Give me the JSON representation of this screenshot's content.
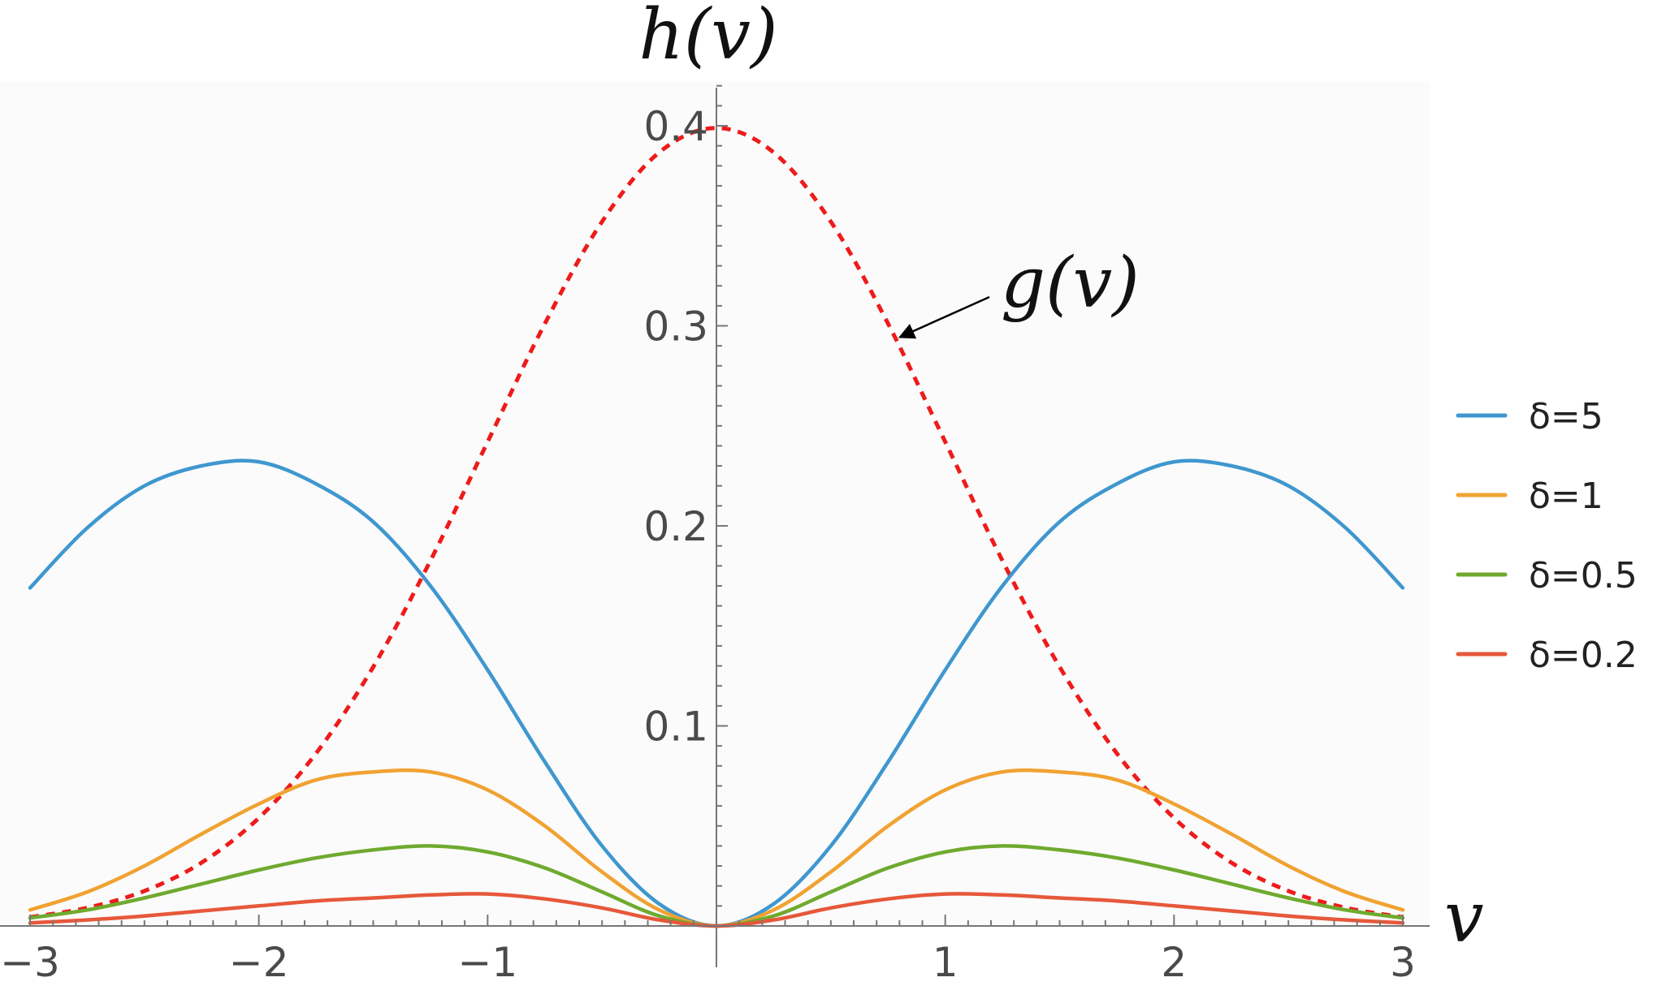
{
  "chart_data": {
    "type": "line",
    "xlabel": "v",
    "ylabel": "h(v)",
    "xlim": [
      -3,
      3
    ],
    "ylim": [
      0,
      0.42
    ],
    "x_ticks": [
      {
        "value": -3,
        "label": "−3"
      },
      {
        "value": -2,
        "label": "−2"
      },
      {
        "value": -1,
        "label": "−1"
      },
      {
        "value": 1,
        "label": "1"
      },
      {
        "value": 2,
        "label": "2"
      },
      {
        "value": 3,
        "label": "3"
      }
    ],
    "y_ticks": [
      {
        "value": 0.1,
        "label": "0.1"
      },
      {
        "value": 0.2,
        "label": "0.2"
      },
      {
        "value": 0.3,
        "label": "0.3"
      },
      {
        "value": 0.4,
        "label": "0.4"
      }
    ],
    "x": [
      -3.0,
      -2.75,
      -2.5,
      -2.25,
      -2.0,
      -1.75,
      -1.5,
      -1.25,
      -1.0,
      -0.75,
      -0.5,
      -0.25,
      0.0,
      0.25,
      0.5,
      0.75,
      1.0,
      1.25,
      1.5,
      1.75,
      2.0,
      2.25,
      2.5,
      2.75,
      3.0
    ],
    "series": [
      {
        "name": "δ=5",
        "color": "#3f97cf",
        "dashed": false,
        "values": [
          0.169,
          0.199,
          0.22,
          0.23,
          0.232,
          0.221,
          0.202,
          0.17,
          0.128,
          0.082,
          0.04,
          0.011,
          0.0,
          0.011,
          0.04,
          0.082,
          0.128,
          0.17,
          0.202,
          0.221,
          0.232,
          0.23,
          0.22,
          0.199,
          0.169
        ]
      },
      {
        "name": "δ=1",
        "color": "#f0a232",
        "dashed": false,
        "values": [
          0.008,
          0.017,
          0.03,
          0.046,
          0.061,
          0.073,
          0.077,
          0.077,
          0.068,
          0.05,
          0.027,
          0.008,
          0.0,
          0.008,
          0.027,
          0.05,
          0.068,
          0.077,
          0.077,
          0.073,
          0.061,
          0.046,
          0.03,
          0.017,
          0.008
        ]
      },
      {
        "name": "δ=0.5",
        "color": "#6faa2f",
        "dashed": false,
        "values": [
          0.004,
          0.008,
          0.014,
          0.021,
          0.028,
          0.034,
          0.038,
          0.04,
          0.037,
          0.029,
          0.017,
          0.005,
          0.0,
          0.005,
          0.017,
          0.029,
          0.037,
          0.04,
          0.038,
          0.034,
          0.028,
          0.021,
          0.014,
          0.008,
          0.004
        ]
      },
      {
        "name": "δ=0.2",
        "color": "#e6583a",
        "dashed": false,
        "values": [
          0.0015,
          0.003,
          0.005,
          0.0075,
          0.01,
          0.0125,
          0.014,
          0.0155,
          0.016,
          0.0135,
          0.009,
          0.003,
          0.0,
          0.003,
          0.009,
          0.0135,
          0.016,
          0.0155,
          0.014,
          0.0125,
          0.01,
          0.0075,
          0.005,
          0.003,
          0.0015
        ]
      },
      {
        "name": "g(v)",
        "color": "#ee1b1b",
        "dashed": true,
        "values": [
          0.0044,
          0.0091,
          0.0175,
          0.0317,
          0.054,
          0.0863,
          0.1295,
          0.1826,
          0.242,
          0.3011,
          0.3521,
          0.3867,
          0.3989,
          0.3867,
          0.3521,
          0.3011,
          0.242,
          0.1826,
          0.1295,
          0.0863,
          0.054,
          0.0317,
          0.0175,
          0.0091,
          0.0044
        ]
      }
    ],
    "legend": {
      "placement": "right",
      "entries": [
        "δ=5",
        "δ=1",
        "δ=0.5",
        "δ=0.2"
      ]
    },
    "annotations": [
      {
        "text": "g(v)",
        "arrow_to": {
          "x": 0.78,
          "y": 0.3
        }
      }
    ],
    "grid": false
  }
}
